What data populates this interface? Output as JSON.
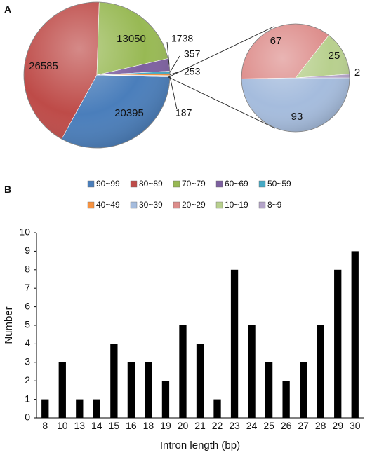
{
  "panels": {
    "a_label": "A",
    "b_label": "B"
  },
  "chart_data": [
    {
      "type": "pie",
      "panel": "A",
      "title": "",
      "slices": [
        {
          "legend": "90~99",
          "value": 20395,
          "label": "20395",
          "color": "#4a7ebb"
        },
        {
          "legend": "80~89",
          "value": 26585,
          "label": "26585",
          "color": "#be4b48"
        },
        {
          "legend": "70~79",
          "value": 13050,
          "label": "13050",
          "color": "#98b954"
        },
        {
          "legend": "60~69",
          "value": 1738,
          "label": "1738",
          "color": "#7d60a0"
        },
        {
          "legend": "50~59",
          "value": 357,
          "label": "357",
          "color": "#46aac5"
        },
        {
          "legend": "40~49",
          "value": 253,
          "label": "253",
          "color": "#f69240"
        },
        {
          "legend": "30~39",
          "value": 187,
          "label": "187",
          "color": "#a5bcdd"
        }
      ],
      "legend_order": [
        "90~99",
        "80~89",
        "70~79",
        "60~69",
        "50~59",
        "40~49",
        "30~39",
        "20~29",
        "10~19",
        "8~9"
      ],
      "legend_colors": {
        "90~99": "#4a7ebb",
        "80~89": "#be4b48",
        "70~79": "#98b954",
        "60~69": "#7d60a0",
        "50~59": "#46aac5",
        "40~49": "#f69240",
        "30~39": "#a5bcdd",
        "20~29": "#dd8d8b",
        "10~19": "#b8d08e",
        "8~9": "#b4a4c9"
      },
      "legend_placement": "below"
    },
    {
      "type": "pie",
      "panel": "A",
      "title": "",
      "slices": [
        {
          "legend": "30~39",
          "value": 93,
          "label": "93",
          "color": "#a5bcdd"
        },
        {
          "legend": "20~29",
          "value": 67,
          "label": "67",
          "color": "#dd8d8b"
        },
        {
          "legend": "10~19",
          "value": 25,
          "label": "25",
          "color": "#b8d08e"
        },
        {
          "legend": "8~9",
          "value": 2,
          "label": "2",
          "color": "#b4a4c9"
        }
      ]
    },
    {
      "type": "bar",
      "panel": "B",
      "title": "",
      "categories": [
        "8",
        "10",
        "13",
        "14",
        "15",
        "16",
        "18",
        "19",
        "20",
        "21",
        "22",
        "23",
        "24",
        "25",
        "26",
        "27",
        "28",
        "29",
        "30"
      ],
      "values": [
        1,
        3,
        1,
        1,
        4,
        3,
        3,
        2,
        5,
        4,
        1,
        8,
        5,
        3,
        2,
        3,
        5,
        8,
        9
      ],
      "xlabel": "Intron length (bp)",
      "ylabel": "Number",
      "ylim": [
        0,
        10
      ],
      "yticks": [
        0,
        1,
        2,
        3,
        4,
        5,
        6,
        7,
        8,
        9,
        10
      ],
      "bar_color": "#000000",
      "grid": false
    }
  ]
}
